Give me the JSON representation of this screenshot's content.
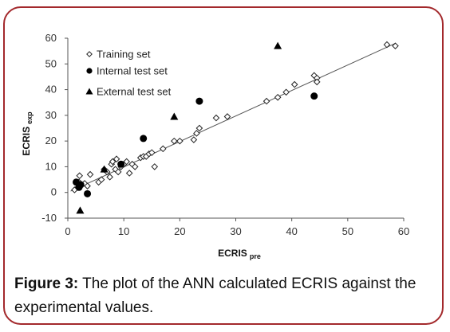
{
  "caption": {
    "label": "Figure 3:",
    "text": " The plot of the ANN calculated ECRIS against the experimental values."
  },
  "colors": {
    "frame": "#a3292c",
    "axis": "#555555",
    "marker": "#000000",
    "fit_line": "#555555"
  },
  "chart_data": {
    "type": "scatter",
    "title": "",
    "xlabel": {
      "main": "ECRIS",
      "sub": "pre"
    },
    "ylabel": {
      "main": "ECRIS",
      "sub": "exp"
    },
    "xlim": [
      0,
      60
    ],
    "ylim": [
      -10,
      60
    ],
    "x_ticks": [
      0,
      10,
      20,
      30,
      40,
      50,
      60
    ],
    "y_ticks": [
      -10,
      0,
      10,
      20,
      30,
      40,
      50,
      60
    ],
    "grid": false,
    "legend_position": "top-left",
    "series": [
      {
        "name": "Training set",
        "marker": "diamond-open",
        "points": [
          [
            1.2,
            1
          ],
          [
            1.8,
            2
          ],
          [
            2,
            4
          ],
          [
            2.1,
            6.5
          ],
          [
            2.5,
            3
          ],
          [
            3,
            3.5
          ],
          [
            3.5,
            2.5
          ],
          [
            4,
            7
          ],
          [
            5.5,
            4
          ],
          [
            6,
            5
          ],
          [
            6.5,
            9
          ],
          [
            7,
            8
          ],
          [
            7.5,
            6
          ],
          [
            7.8,
            11
          ],
          [
            8,
            12
          ],
          [
            8.5,
            9
          ],
          [
            8.7,
            13
          ],
          [
            9,
            8
          ],
          [
            9.5,
            10
          ],
          [
            10,
            11
          ],
          [
            10.5,
            12
          ],
          [
            11,
            7.5
          ],
          [
            11.5,
            11
          ],
          [
            12,
            10
          ],
          [
            13,
            13.5
          ],
          [
            13.5,
            14
          ],
          [
            14,
            14
          ],
          [
            14.5,
            15
          ],
          [
            15,
            15.5
          ],
          [
            15.5,
            10
          ],
          [
            17,
            17
          ],
          [
            19,
            20
          ],
          [
            20,
            20
          ],
          [
            22.5,
            20.5
          ],
          [
            23,
            23
          ],
          [
            23.5,
            25
          ],
          [
            26.5,
            29
          ],
          [
            28.5,
            29.5
          ],
          [
            35.5,
            35.5
          ],
          [
            37.5,
            37
          ],
          [
            39,
            39
          ],
          [
            40.5,
            42
          ],
          [
            44,
            45.5
          ],
          [
            44.5,
            44.5
          ],
          [
            44.5,
            43
          ],
          [
            57,
            57.5
          ],
          [
            58.5,
            57
          ]
        ]
      },
      {
        "name": "Internal test set",
        "marker": "circle-filled",
        "points": [
          [
            1.5,
            4
          ],
          [
            2,
            2
          ],
          [
            2.3,
            3
          ],
          [
            3.5,
            -0.5
          ],
          [
            9.5,
            11
          ],
          [
            13.5,
            21
          ],
          [
            23.5,
            35.5
          ],
          [
            44,
            37.5
          ]
        ]
      },
      {
        "name": "External test set",
        "marker": "triangle-filled",
        "points": [
          [
            2.2,
            -7
          ],
          [
            6.5,
            9
          ],
          [
            19,
            29.5
          ],
          [
            37.5,
            57
          ]
        ]
      }
    ],
    "fit_line": [
      [
        0.5,
        0.5
      ],
      [
        58.5,
        58
      ]
    ]
  }
}
